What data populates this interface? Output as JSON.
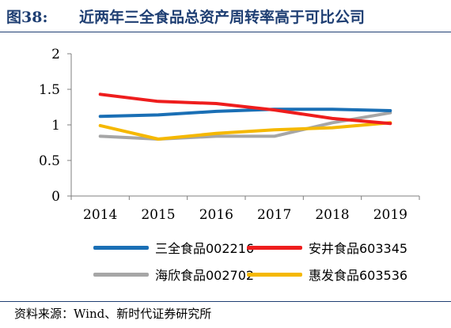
{
  "figure": {
    "label": "图38:",
    "title": "近两年三全食品总资产周转率高于可比公司",
    "source": "资料来源：Wind、新时代证券研究所"
  },
  "chart_data": {
    "type": "line",
    "title": "",
    "xlabel": "",
    "ylabel": "",
    "x": [
      "2014",
      "2015",
      "2016",
      "2017",
      "2018",
      "2019"
    ],
    "ylim": [
      0,
      2
    ],
    "yticks": [
      "0",
      "0.5",
      "1",
      "1.5",
      "2"
    ],
    "grid": false,
    "legend_position": "bottom",
    "series": [
      {
        "name": "三全食品002216",
        "color": "#1a6fb5",
        "values": [
          1.12,
          1.14,
          1.19,
          1.22,
          1.22,
          1.2
        ]
      },
      {
        "name": "安井食品603345",
        "color": "#ee1d1d",
        "values": [
          1.43,
          1.33,
          1.3,
          1.21,
          1.09,
          1.02
        ]
      },
      {
        "name": "海欣食品002702",
        "color": "#a6a6a6",
        "values": [
          0.84,
          0.8,
          0.84,
          0.84,
          1.03,
          1.17
        ]
      },
      {
        "name": "惠发食品603536",
        "color": "#f5b800",
        "values": [
          0.99,
          0.8,
          0.88,
          0.93,
          0.96,
          1.03
        ]
      }
    ]
  }
}
